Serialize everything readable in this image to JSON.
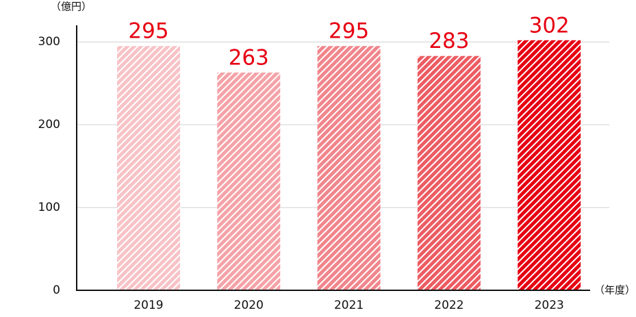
{
  "chart_data": {
    "type": "bar",
    "y_axis_label": "（億円）",
    "x_axis_label": "（年度）",
    "categories": [
      "2019",
      "2020",
      "2021",
      "2022",
      "2023"
    ],
    "values": [
      295,
      263,
      295,
      283,
      302
    ],
    "colors": [
      "#f7c3c7",
      "#f4a3a8",
      "#f0868c",
      "#ec5c63",
      "#e60012"
    ],
    "label_color": "#e60012",
    "ylim": [
      0,
      320
    ],
    "yticks": [
      0,
      100,
      200,
      300
    ],
    "grid": true
  }
}
